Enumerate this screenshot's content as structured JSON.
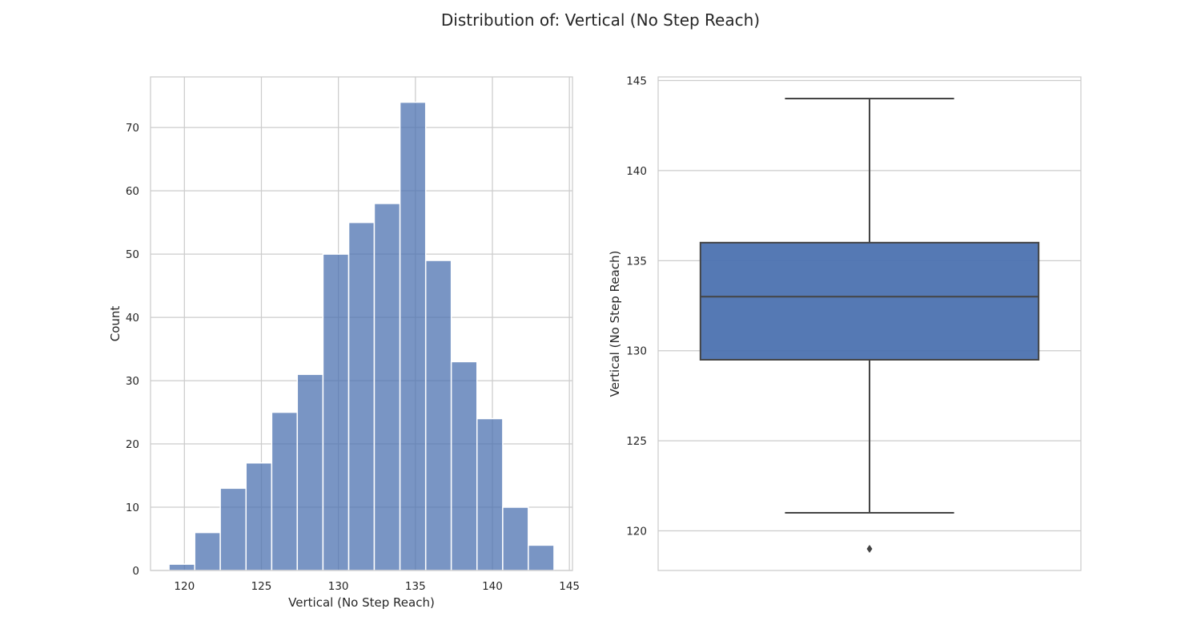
{
  "figure": {
    "title": "Distribution of: Vertical (No Step Reach)"
  },
  "chart_data": [
    {
      "type": "bar",
      "subtype": "histogram",
      "xlabel": "Vertical (No Step Reach)",
      "ylabel": "Count",
      "xlim": [
        117.8,
        145.2
      ],
      "ylim": [
        0,
        78
      ],
      "xticks": [
        "120",
        "125",
        "130",
        "135",
        "140",
        "145"
      ],
      "yticks": [
        "0",
        "10",
        "20",
        "30",
        "40",
        "50",
        "60",
        "70"
      ],
      "grid": true,
      "color": "#4c72b0",
      "bins": [
        {
          "x0": 119.0,
          "x1": 120.67,
          "count": 1
        },
        {
          "x0": 120.67,
          "x1": 122.33,
          "count": 6
        },
        {
          "x0": 122.33,
          "x1": 124.0,
          "count": 13
        },
        {
          "x0": 124.0,
          "x1": 125.67,
          "count": 17
        },
        {
          "x0": 125.67,
          "x1": 127.33,
          "count": 25
        },
        {
          "x0": 127.33,
          "x1": 129.0,
          "count": 31
        },
        {
          "x0": 129.0,
          "x1": 130.67,
          "count": 50
        },
        {
          "x0": 130.67,
          "x1": 132.33,
          "count": 55
        },
        {
          "x0": 132.33,
          "x1": 134.0,
          "count": 58
        },
        {
          "x0": 134.0,
          "x1": 135.67,
          "count": 74
        },
        {
          "x0": 135.67,
          "x1": 137.33,
          "count": 49
        },
        {
          "x0": 137.33,
          "x1": 139.0,
          "count": 33
        },
        {
          "x0": 139.0,
          "x1": 140.67,
          "count": 24
        },
        {
          "x0": 140.67,
          "x1": 142.33,
          "count": 10
        },
        {
          "x0": 142.33,
          "x1": 144.0,
          "count": 4
        }
      ]
    },
    {
      "type": "box",
      "ylabel": "Vertical (No Step Reach)",
      "ylim": [
        117.8,
        145.2
      ],
      "yticks": [
        "120",
        "125",
        "130",
        "135",
        "140",
        "145"
      ],
      "grid": true,
      "color": "#4c72b0",
      "line_color": "#444444",
      "whisker_low": 121,
      "q1": 129.5,
      "median": 133,
      "q3": 136,
      "whisker_high": 144,
      "outliers": [
        119
      ]
    }
  ]
}
